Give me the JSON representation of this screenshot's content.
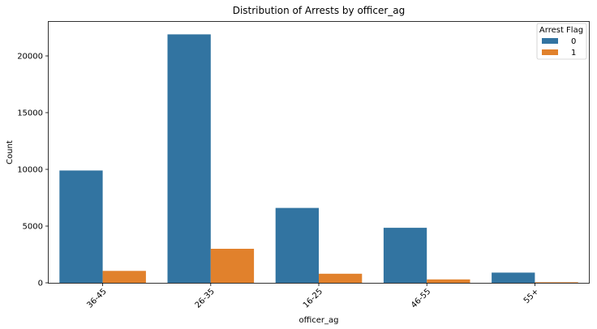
{
  "chart_data": {
    "type": "bar",
    "title": "Distribution of Arrests by officer_ag",
    "xlabel": "officer_ag",
    "ylabel": "Count",
    "categories": [
      "36-45",
      "26-35",
      "16-25",
      "46-55",
      "55+"
    ],
    "series": [
      {
        "name": "0",
        "color": "#3274a1",
        "values": [
          9900,
          21900,
          6600,
          4850,
          900
        ]
      },
      {
        "name": "1",
        "color": "#e1812c",
        "values": [
          1050,
          3000,
          800,
          300,
          50
        ]
      }
    ],
    "yticks": [
      0,
      5000,
      10000,
      15000,
      20000
    ],
    "ylim": [
      0,
      23000
    ],
    "legend": {
      "title": "Arrest Flag",
      "placement": "top-right"
    },
    "grid": false,
    "xtick_rotation": 45
  }
}
